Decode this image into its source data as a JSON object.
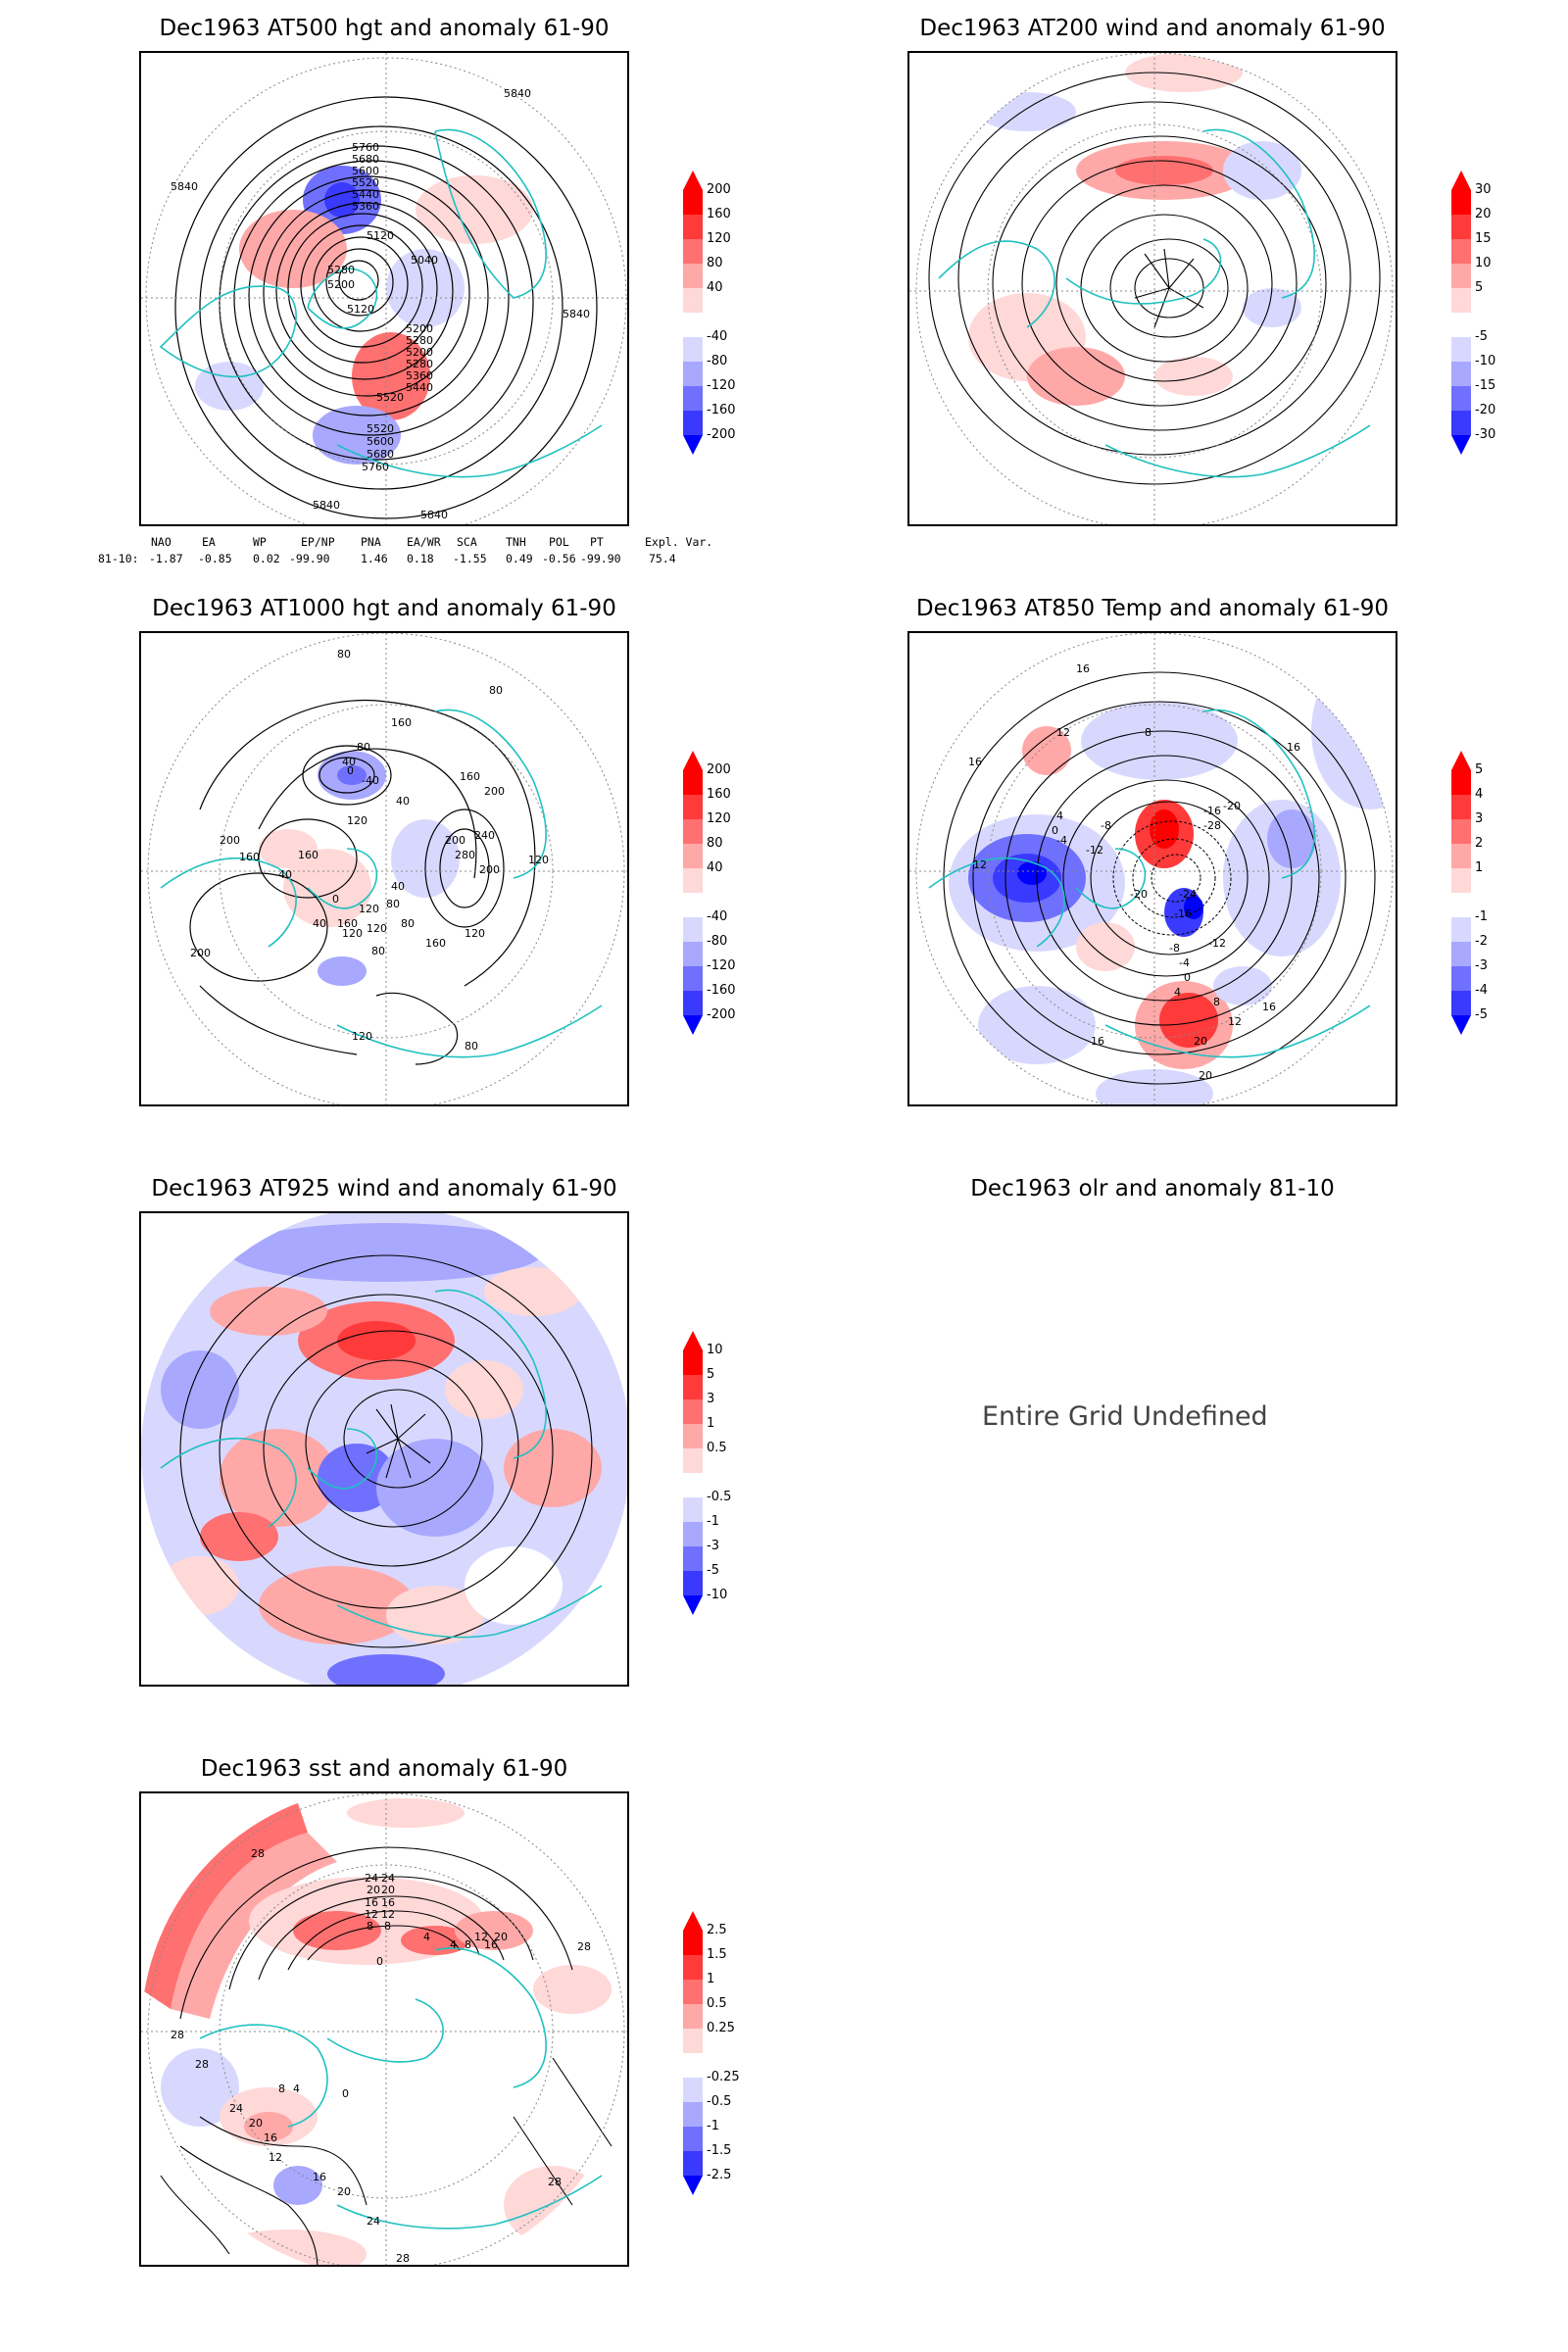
{
  "panels": [
    {
      "id": "at500",
      "title": "Dec1963 AT500 hgt and anomaly 61-90",
      "colorbar": [
        "200",
        "160",
        "120",
        "80",
        "40",
        "-40",
        "-80",
        "-120",
        "-160",
        "-200"
      ],
      "contour_labels": [
        "5840",
        "5840",
        "5840",
        "5760",
        "5680",
        "5600",
        "5520",
        "5440",
        "5360",
        "5280",
        "5200",
        "5120",
        "5040",
        "5200",
        "5280",
        "5120",
        "5200",
        "5280",
        "5360",
        "5440",
        "5520",
        "5520",
        "5600",
        "5680",
        "5760",
        "5840",
        "5840"
      ],
      "indexes": {
        "headers": [
          "NAO",
          "EA",
          "WP",
          "EP/NP",
          "PNA",
          "EA/WR",
          "SCA",
          "TNH",
          "POL",
          "PT",
          "Expl. Var."
        ],
        "row_label": "81-10:",
        "values": [
          "-1.87",
          "-0.85",
          "0.02",
          "-99.90",
          "1.46",
          "0.18",
          "-1.55",
          "0.49",
          "-0.56",
          "-99.90",
          "75.4"
        ]
      }
    },
    {
      "id": "at200",
      "title": "Dec1963 AT200 wind and anomaly 61-90",
      "colorbar": [
        "30",
        "20",
        "15",
        "10",
        "5",
        "-5",
        "-10",
        "-15",
        "-20",
        "-30"
      ],
      "contour_labels": []
    },
    {
      "id": "at1000",
      "title": "Dec1963 AT1000 hgt and anomaly 61-90",
      "colorbar": [
        "200",
        "160",
        "120",
        "80",
        "40",
        "-40",
        "-80",
        "-120",
        "-160",
        "-200"
      ],
      "contour_labels": [
        "80",
        "80",
        "160",
        "80",
        "40",
        "0",
        "-40",
        "40",
        "200",
        "160",
        "120",
        "200",
        "160",
        "200",
        "240",
        "280",
        "200",
        "120",
        "160",
        "40",
        "0",
        "40",
        "80",
        "120",
        "160",
        "120",
        "80",
        "120",
        "120",
        "160",
        "80",
        "40",
        "200",
        "120",
        "80"
      ]
    },
    {
      "id": "at850",
      "title": "Dec1963 AT850 Temp and anomaly 61-90",
      "colorbar": [
        "5",
        "4",
        "3",
        "2",
        "1",
        "-1",
        "-2",
        "-3",
        "-4",
        "-5"
      ],
      "contour_labels": [
        "16",
        "16",
        "12",
        "8",
        "16",
        "4",
        "0",
        "-4",
        "-8",
        "-12",
        "-16",
        "-20",
        "-24",
        "-28",
        "-20",
        "-16",
        "-12",
        "-8",
        "-4",
        "0",
        "4",
        "8",
        "12",
        "16",
        "20",
        "20",
        "16",
        "12"
      ]
    },
    {
      "id": "at925",
      "title": "Dec1963 AT925 wind and anomaly 61-90",
      "colorbar": [
        "10",
        "5",
        "3",
        "1",
        "0.5",
        "-0.5",
        "-1",
        "-3",
        "-5",
        "-10"
      ],
      "contour_labels": []
    },
    {
      "id": "olr",
      "title": "Dec1963 olr and anomaly 81-10",
      "message": "Entire Grid Undefined"
    },
    {
      "id": "sst",
      "title": "Dec1963 sst and anomaly 61-90",
      "colorbar": [
        "2.5",
        "1.5",
        "1",
        "0.5",
        "0.25",
        "-0.25",
        "-0.5",
        "-1",
        "-1.5",
        "-2.5"
      ],
      "contour_labels": [
        "28",
        "24",
        "24",
        "20",
        "20",
        "16",
        "16",
        "12",
        "12",
        "8",
        "8",
        "4",
        "0",
        "4",
        "8",
        "12",
        "16",
        "20",
        "28",
        "28",
        "28",
        "24",
        "20",
        "16",
        "12",
        "8",
        "4",
        "0",
        "28",
        "24",
        "20",
        "16",
        "28"
      ]
    }
  ],
  "colors": {
    "red_max": "#ff0000",
    "red_4": "#ff3a3a",
    "red_3": "#ff7070",
    "red_2": "#ffa8a8",
    "red_1": "#ffd8d8",
    "blue_1": "#d8d8ff",
    "blue_2": "#a8a8ff",
    "blue_3": "#7070ff",
    "blue_4": "#3a3aff",
    "blue_max": "#0000ff",
    "coast": "#20c0c0",
    "contour": "#000000"
  }
}
